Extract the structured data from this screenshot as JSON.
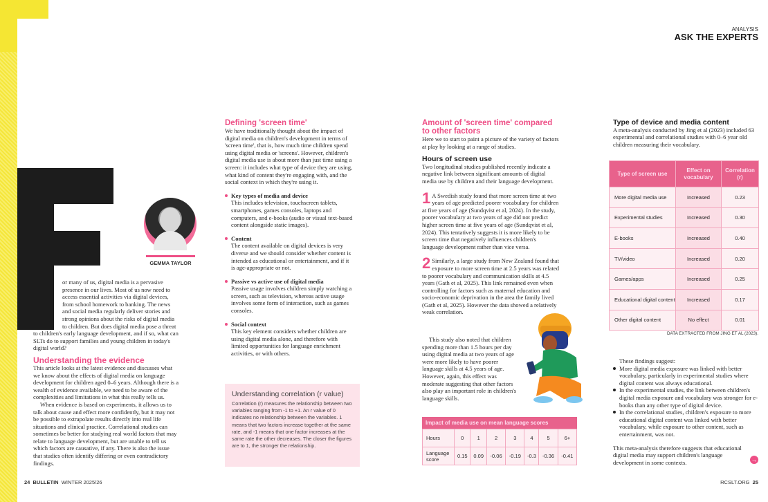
{
  "header": {
    "section": "ANALYSIS",
    "title": "ASK THE EXPERTS"
  },
  "author": {
    "name": "GEMMA TAYLOR",
    "drop_cap": "F"
  },
  "intro": "or many of us, digital media is a pervasive presence in our lives. Most of us now need to access essential activities via digital devices, from school homework to banking. The news and social media regularly deliver stories and strong opinions about the risks of digital media to children. But does digital media pose a threat to children's early language development, and if so, what can SLTs do to support families and young children in today's digital world?",
  "evidence": {
    "heading": "Understanding the evidence",
    "p1": "This article looks at the latest evidence and discusses what we know about the effects of digital media on language development for children aged 0–6 years. Although there is a wealth of evidence available, we need to be aware of the complexities and limitations in what this really tells us.",
    "p2": "When evidence is based on experiments, it allows us to talk about cause and effect more confidently, but it may not be possible to extrapolate results directly into real life situations and clinical practice. Correlational studies can sometimes be better for studying real world factors that may relate to language development, but are unable to tell us which factors are causative, if any. There is also the issue that studies often identify differing or even contradictory findings."
  },
  "defining": {
    "heading": "Defining 'screen time'",
    "p": "We have traditionally thought about the impact of digital media on children's development in terms of 'screen time', that is, how much time children spend using digital media or 'screens'. However, children's digital media use is about more than just time using a screen: it includes what type of device they are using, what kind of content they're engaging with, and the social context in which they're using it.",
    "bullets": [
      {
        "title": "Key types of media and device",
        "text": "This includes television, touchscreen tablets, smartphones, games consoles, laptops and computers, and e-books (audio or visual text-based content alongside static images)."
      },
      {
        "title": "Content",
        "text": "The content available on digital devices is very diverse and we should consider whether content is intended as educational or entertainment, and if it is age-appropriate or not."
      },
      {
        "title": "Passive vs active use of digital media",
        "text": "Passive usage involves children simply watching a screen, such as television, whereas active usage involves some form of interaction, such as games consoles."
      },
      {
        "title": "Social context",
        "text": "This key element considers whether children are using digital media alone, and therefore with limited opportunities for language enrichment activities, or with others."
      }
    ]
  },
  "correlation_box": {
    "title": "Understanding correlation (r value)",
    "text": "Correlation (r) measures the relationship between two variables ranging from -1 to +1. An r value of 0 indicates no relationship between the variables. 1 means that two factors increase together at the same rate, and -1 means that one factor increases at the same rate the other decreases. The closer the figures are to 1, the stronger the relationship."
  },
  "amount": {
    "heading": "Amount of 'screen time' compared to other factors",
    "p": "Here we to start to paint a picture of the variety of factors at play by looking at a range of studies.",
    "sub": "Hours of screen use",
    "p2": "Two longitudinal studies published recently indicate a negative link between significant amounts of digital media use by children and their language development.",
    "n1": "1",
    "s1": "A Swedish study found that more screen time at two years of age predicted poorer vocabulary for children at five years of age (Sundqvist et al, 2024). In the study, poorer vocabulary at two years of age did not predict higher screen time at five years of age (Sundqvist et al, 2024). This tentatively suggests it is more likely to be screen time that negatively influences children's language development rather than vice versa.",
    "n2": "2",
    "s2": "Similarly, a large study from New Zealand found that exposure to more screen time at 2.5 years was related to poorer vocabulary and communication skills at 4.5 years (Gath et al, 2025). This link remained even when controlling for factors such as maternal education and socio-economic deprivation in the area the family lived (Gath et al, 2025). However the data showed a relatively weak correlation.",
    "p3": "This study also noted that children spending more than 1.5 hours per day using digital media at two years of age were more likely to have poorer language skills at 4.5 years of age. However, again, this effect was moderate suggesting that other factors also play an important role in children's language skills."
  },
  "impact_table": {
    "title": "Impact of media use on mean language scores",
    "row_labels": [
      "Hours",
      "Language score"
    ],
    "hours": [
      "0",
      "1",
      "2",
      "3",
      "4",
      "5",
      "6+"
    ],
    "scores": [
      "0.15",
      "0.09",
      "-0.06",
      "-0.19",
      "-0.3",
      "-0.36",
      "-0.41"
    ]
  },
  "device": {
    "heading": "Type of device and media content",
    "p": "A meta-analysis conducted by Jing et al (2023) included 63 experimental and correlational studies with 0–6 year old children measuring their vocabulary.",
    "columns": [
      "Type of screen use",
      "Effect on vocabulary",
      "Correlation (r)"
    ],
    "rows": [
      [
        "More digital media use",
        "Increased",
        "0.23"
      ],
      [
        "Experimental studies",
        "Increased",
        "0.30"
      ],
      [
        "E-books",
        "Increased",
        "0.40"
      ],
      [
        "TV/video",
        "Increased",
        "0.20"
      ],
      [
        "Games/apps",
        "Increased",
        "0.25"
      ],
      [
        "Educational digital content",
        "Increased",
        "0.17"
      ],
      [
        "Other digital content",
        "No effect",
        "0.01"
      ]
    ],
    "source": "DATA EXTRACTED FROM JING ET AL (2023).",
    "findings_intro": "These findings suggest:",
    "findings": [
      "More digital media exposure was linked with better vocabulary, particularly in experimental studies where digital content was always educational.",
      "In the experimental studies, the link between children's digital media exposure and vocabulary was stronger for e-books than any other type of digital device.",
      "In the correlational studies, children's exposure to more educational digital content was linked with better vocabulary, while exposure to other content, such as entertainment, was not."
    ],
    "conclusion": "This meta-analysis therefore suggests that educational digital media may support children's language development in some contexts."
  },
  "footer": {
    "left_page": "24",
    "publication": "BULLETIN",
    "issue": "WINTER 2025/26",
    "site": "RCSLT.ORG",
    "right_page": "25"
  },
  "colors": {
    "accent": "#ee4f86",
    "yellow": "#f5e633",
    "table_header": "#e8628c",
    "box_bg": "#fde3ea"
  }
}
